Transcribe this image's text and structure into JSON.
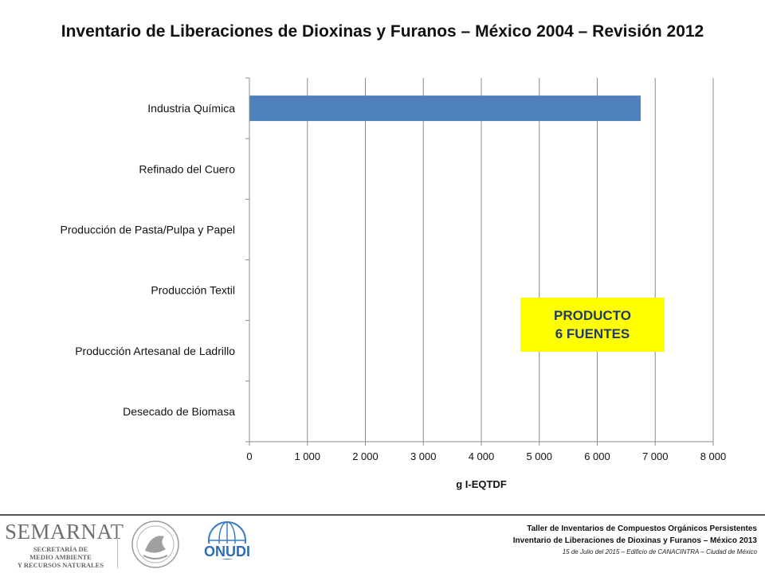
{
  "chart_data": {
    "type": "bar",
    "orientation": "horizontal",
    "title": "Inventario de Liberaciones de Dioxinas y Furanos – México 2004 – Revisión 2012",
    "categories": [
      "Industria Química",
      "Refinado del Cuero",
      "Producción de Pasta/Pulpa y Papel",
      "Producción Textil",
      "Producción Artesanal de Ladrillo",
      "Desecado de Biomasa"
    ],
    "values": [
      6750,
      0,
      0,
      0,
      0,
      0
    ],
    "xlabel": "g I-EQTDF",
    "ylabel": "",
    "xlim": [
      0,
      8000
    ],
    "xticks": [
      0,
      1000,
      2000,
      3000,
      4000,
      5000,
      6000,
      7000,
      8000
    ],
    "xtick_labels": [
      "0",
      "1 000",
      "2 000",
      "3 000",
      "4 000",
      "5 000",
      "6 000",
      "7 000",
      "8 000"
    ],
    "grid": "vertical",
    "bar_color": "#4f81bd",
    "annotation": {
      "line1": "PRODUCTO",
      "line2": "6 FUENTES",
      "background": "#ffff00"
    }
  },
  "footer": {
    "logo_semarnat": {
      "brand": "SEMARNAT",
      "line1": "SECRETARÍA DE",
      "line2": "MEDIO AMBIENTE",
      "line3": "Y RECURSOS NATURALES"
    },
    "logo_onudi": "ONUDI",
    "line1": "Taller de Inventarios de Compuestos Orgánicos Persistentes",
    "line2": "Inventario de Liberaciones de Dioxinas y Furanos – México 2013",
    "line3": "15 de Julio del 2015 – Edificio de CANACINTRA – Ciudad de México"
  }
}
